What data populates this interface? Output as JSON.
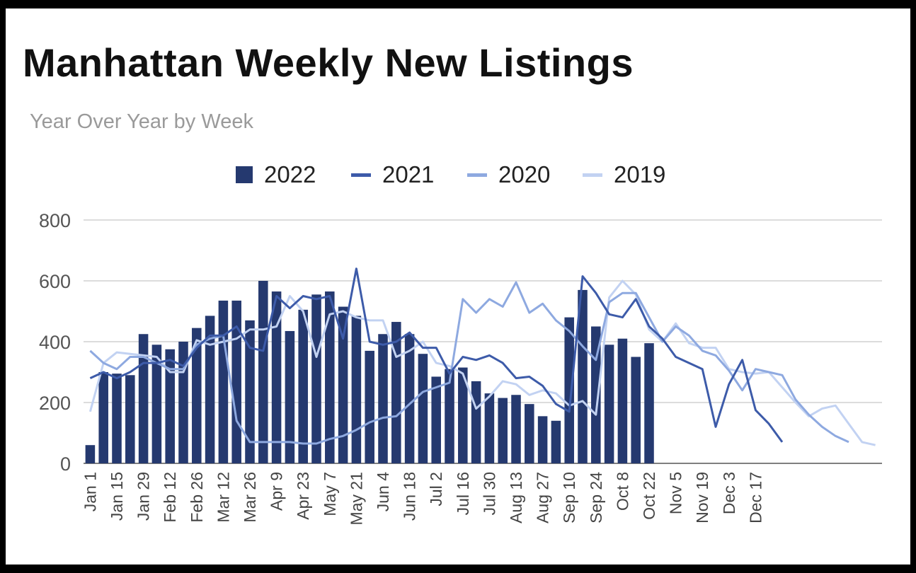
{
  "chart_data": {
    "type": "bar",
    "title": "Manhattan Weekly New Listings",
    "subtitle": "Year Over Year by Week",
    "xlabel": "",
    "ylabel": "",
    "ylim": [
      0,
      800
    ],
    "yticks": [
      0,
      200,
      400,
      600,
      800
    ],
    "grid": true,
    "legend_position": "top",
    "x_tick_labels": [
      "Jan 1",
      "Jan 15",
      "Jan 29",
      "Feb 12",
      "Feb 26",
      "Mar 12",
      "Mar 26",
      "Apr 9",
      "Apr 23",
      "May 7",
      "May 21",
      "Jun 4",
      "Jun 18",
      "Jul 2",
      "Jul 16",
      "Jul 30",
      "Aug 13",
      "Aug 27",
      "Sep 10",
      "Sep 24",
      "Oct 8",
      "Oct 22",
      "Nov 5",
      "Nov 19",
      "Dec 3",
      "Dec 17"
    ],
    "series": [
      {
        "name": "2022",
        "type": "bar",
        "color": "#25396f",
        "values": [
          60,
          300,
          295,
          290,
          425,
          390,
          375,
          400,
          445,
          485,
          535,
          535,
          470,
          600,
          565,
          435,
          505,
          555,
          565,
          515,
          485,
          370,
          425,
          465,
          425,
          360,
          285,
          310,
          315,
          270,
          230,
          215,
          225,
          195,
          155,
          140,
          480,
          570,
          450,
          390,
          410,
          350,
          395
        ]
      },
      {
        "name": "2021",
        "type": "line",
        "color": "#3d5ba9",
        "values": [
          280,
          300,
          280,
          300,
          330,
          330,
          340,
          320,
          380,
          420,
          420,
          450,
          380,
          370,
          550,
          510,
          550,
          540,
          550,
          410,
          640,
          400,
          390,
          400,
          430,
          380,
          380,
          295,
          350,
          340,
          355,
          330,
          280,
          285,
          255,
          195,
          170,
          615,
          560,
          490,
          480,
          540,
          450,
          410,
          350,
          330,
          310,
          120,
          260,
          340,
          175,
          130,
          70
        ]
      },
      {
        "name": "2020",
        "type": "line",
        "color": "#8ea9e0",
        "values": [
          370,
          330,
          310,
          350,
          350,
          330,
          310,
          310,
          390,
          410,
          420,
          140,
          70,
          70,
          70,
          70,
          65,
          65,
          80,
          90,
          110,
          135,
          150,
          155,
          195,
          235,
          250,
          265,
          540,
          495,
          540,
          515,
          595,
          495,
          525,
          470,
          435,
          385,
          340,
          530,
          560,
          560,
          480,
          400,
          450,
          420,
          370,
          355,
          305,
          240,
          310,
          300,
          290,
          210,
          160,
          120,
          90,
          70
        ]
      },
      {
        "name": "2019",
        "type": "line",
        "color": "#c2d2f2",
        "values": [
          170,
          330,
          365,
          360,
          355,
          350,
          300,
          300,
          405,
          390,
          400,
          410,
          440,
          440,
          450,
          550,
          500,
          350,
          490,
          500,
          480,
          470,
          470,
          350,
          370,
          400,
          330,
          320,
          295,
          180,
          220,
          270,
          260,
          225,
          240,
          230,
          190,
          205,
          160,
          545,
          600,
          555,
          440,
          400,
          460,
          395,
          380,
          380,
          310,
          300,
          295,
          300,
          250,
          200,
          155,
          180,
          190,
          130,
          70,
          60
        ]
      }
    ]
  }
}
